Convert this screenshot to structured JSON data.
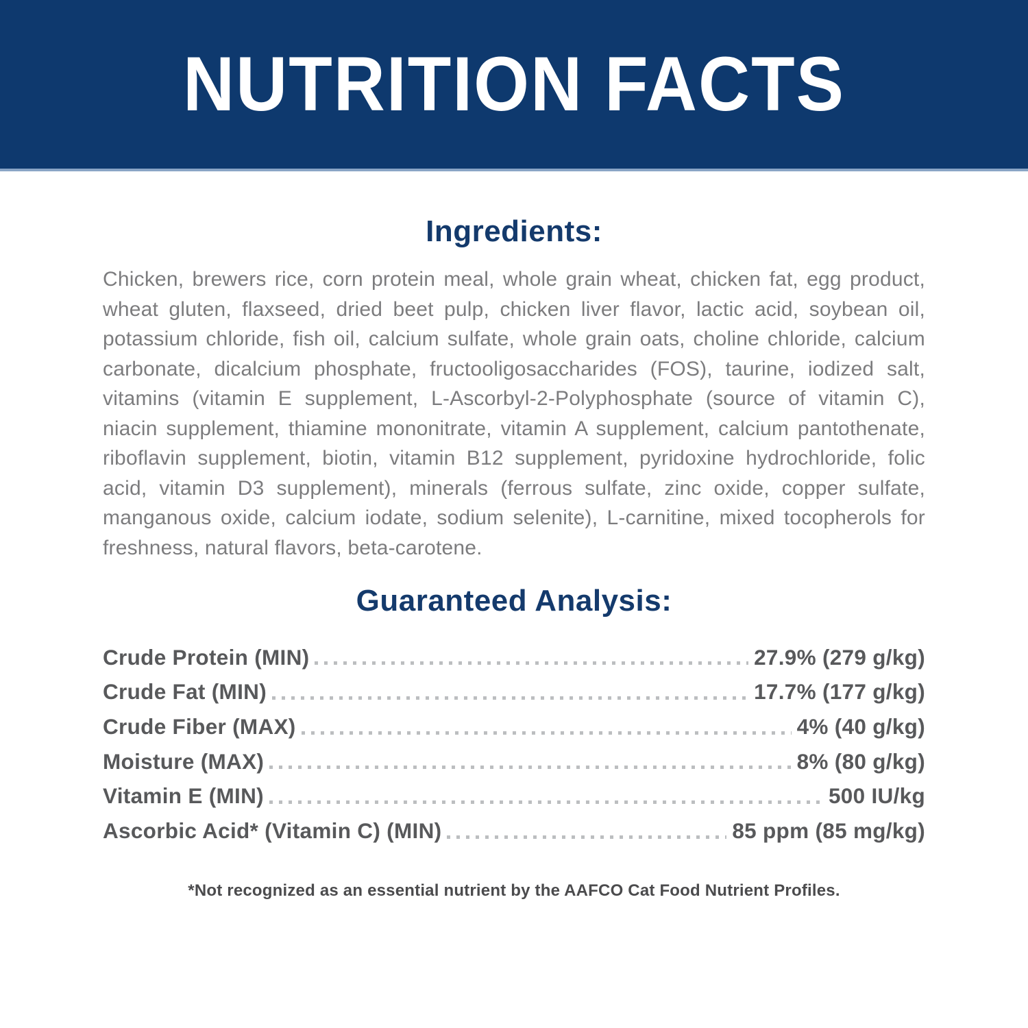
{
  "colors": {
    "band_navy": "#0e396e",
    "band_edge": "#8aa5c6",
    "title_white": "#ffffff",
    "heading_navy": "#143a6c",
    "body_gray": "#7c7c7e",
    "analysis_dark_gray": "#58595b",
    "dot_gray": "#bcbec0",
    "footnote_gray": "#4b4b4d"
  },
  "header": {
    "title": "NUTRITION FACTS"
  },
  "ingredients": {
    "heading": "Ingredients:",
    "text": "Chicken, brewers rice, corn protein meal, whole grain wheat, chicken fat, egg product, wheat gluten, flaxseed, dried beet pulp, chicken liver flavor, lactic acid, soybean oil, potassium chloride, fish oil, calcium sulfate, whole grain oats, choline chloride, calcium carbonate, dicalcium phosphate, fructooligosaccharides (FOS), taurine, iodized salt, vitamins (vitamin E supplement, L-Ascorbyl-2-Polyphosphate (source of vitamin C), niacin supplement, thiamine mononitrate, vitamin A supplement, calcium pantothenate, riboflavin supplement, biotin, vitamin B12 supplement, pyridoxine hydrochloride, folic acid, vitamin D3 supplement), minerals (ferrous sulfate, zinc oxide, copper sulfate, manganous oxide, calcium iodate, sodium selenite), L-carnitine, mixed tocopherols for freshness, natural flavors, beta-carotene."
  },
  "analysis": {
    "heading": "Guaranteed Analysis:",
    "rows": [
      {
        "label": "Crude Protein (MIN)",
        "value": "27.9% (279 g/kg)"
      },
      {
        "label": "Crude Fat (MIN)",
        "value": "17.7% (177 g/kg)"
      },
      {
        "label": "Crude Fiber (MAX)",
        "value": "4% (40 g/kg)"
      },
      {
        "label": "Moisture (MAX)",
        "value": "8% (80 g/kg)"
      },
      {
        "label": "Vitamin E (MIN)",
        "value": "500 IU/kg"
      },
      {
        "label": "Ascorbic Acid* (Vitamin C) (MIN)",
        "value": "85 ppm (85 mg/kg)"
      }
    ]
  },
  "footnote": "*Not recognized as an essential nutrient by the AAFCO Cat Food Nutrient Profiles."
}
